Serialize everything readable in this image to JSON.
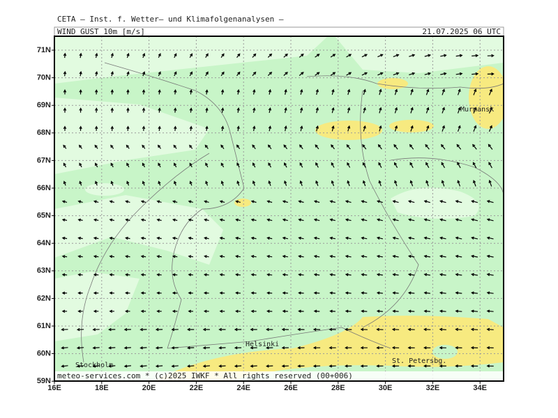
{
  "header": {
    "title": "CETA — Inst. f. Wetter— und Klimafolgenanalysen —",
    "variable": "WIND_GUST_10m [m/s]",
    "valid_time": "21.07.2025 06 UTC"
  },
  "map": {
    "lat_labels": [
      "71N",
      "70N",
      "69N",
      "68N",
      "67N",
      "66N",
      "65N",
      "64N",
      "63N",
      "62N",
      "61N",
      "60N",
      "59N"
    ],
    "lon_labels": [
      "16E",
      "18E",
      "20E",
      "22E",
      "24E",
      "26E",
      "28E",
      "30E",
      "32E",
      "34E"
    ],
    "places": [
      "Helsinki",
      "Stockholm",
      "St. Petersbg.",
      "Murmansk"
    ]
  },
  "footer": "meteo-services.com * (c)2025 IWKF * All rights reserved (00+006)"
}
